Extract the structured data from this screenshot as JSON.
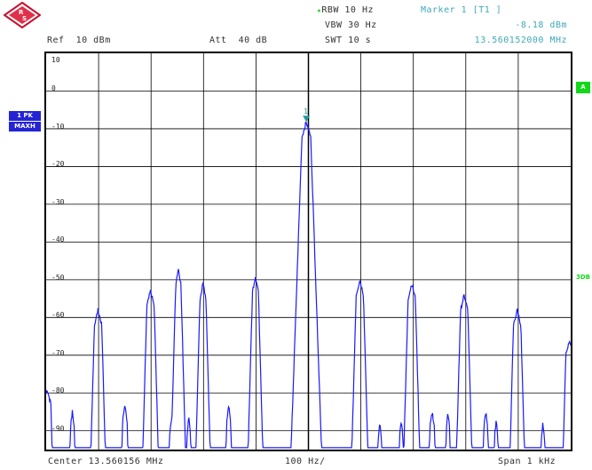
{
  "header": {
    "rbw": "RBW 10 Hz",
    "vbw": "VBW 30 Hz",
    "swt": "SWT 10 s",
    "marker_title": "Marker 1 [T1 ]",
    "marker_level": "-8.18 dBm",
    "marker_freq": "13.560152000 MHz",
    "ref": "Ref  10 dBm",
    "att": "Att  40 dB"
  },
  "side": {
    "trace_label_1": "1 PK",
    "trace_label_2": "MAXH",
    "badge_a": "A",
    "badge_3db": "3DB"
  },
  "footer": {
    "center": "Center 13.560156 MHz",
    "div": "100 Hz/",
    "span": "Span 1 kHz"
  },
  "marker": {
    "number": "1",
    "level_dbm": -8.18
  },
  "colors": {
    "trace": "#1a1aff",
    "marker": "#1f9a9a",
    "grid": "#000000",
    "accent_green": "#12d81a",
    "accent_blue": "#2424d6"
  },
  "chart_data": {
    "type": "line",
    "xlabel": "",
    "ylabel": "",
    "xlim": [
      13.559656,
      13.560656
    ],
    "ylim": [
      -95,
      10
    ],
    "y_ticks": [
      "10",
      "0",
      "-10",
      "-20",
      "-30",
      "-40",
      "-50",
      "-60",
      "-70",
      "-80",
      "-90"
    ],
    "y_tick_values": [
      10,
      0,
      -10,
      -20,
      -30,
      -40,
      -50,
      -60,
      -70,
      -80,
      -90
    ],
    "grid": true,
    "noise_floor": -96,
    "peaks": [
      {
        "x": 13.559658,
        "y": -79,
        "w": 1.0
      },
      {
        "x": 13.559706,
        "y": -85,
        "w": 0.5
      },
      {
        "x": 13.559755,
        "y": -58,
        "w": 1.0
      },
      {
        "x": 13.559806,
        "y": -83,
        "w": 0.6
      },
      {
        "x": 13.559855,
        "y": -53,
        "w": 1.0
      },
      {
        "x": 13.559895,
        "y": -87,
        "w": 0.5
      },
      {
        "x": 13.559908,
        "y": -47,
        "w": 0.7
      },
      {
        "x": 13.559928,
        "y": -86,
        "w": 0.4
      },
      {
        "x": 13.559955,
        "y": -51,
        "w": 0.8
      },
      {
        "x": 13.560004,
        "y": -83,
        "w": 0.5
      },
      {
        "x": 13.560055,
        "y": -49,
        "w": 0.8
      },
      {
        "x": 13.560152,
        "y": -8.18,
        "w": 1.2
      },
      {
        "x": 13.560254,
        "y": -50,
        "w": 1.0
      },
      {
        "x": 13.560292,
        "y": -88,
        "w": 0.4
      },
      {
        "x": 13.560333,
        "y": -87,
        "w": 0.4
      },
      {
        "x": 13.560353,
        "y": -51,
        "w": 1.0
      },
      {
        "x": 13.560392,
        "y": -85,
        "w": 0.6
      },
      {
        "x": 13.560422,
        "y": -85,
        "w": 0.4
      },
      {
        "x": 13.560453,
        "y": -54,
        "w": 1.0
      },
      {
        "x": 13.560494,
        "y": -85,
        "w": 0.5
      },
      {
        "x": 13.560514,
        "y": -87,
        "w": 0.4
      },
      {
        "x": 13.560554,
        "y": -58,
        "w": 1.0
      },
      {
        "x": 13.560603,
        "y": -88,
        "w": 0.4
      },
      {
        "x": 13.560653,
        "y": -66,
        "w": 0.9
      }
    ]
  }
}
